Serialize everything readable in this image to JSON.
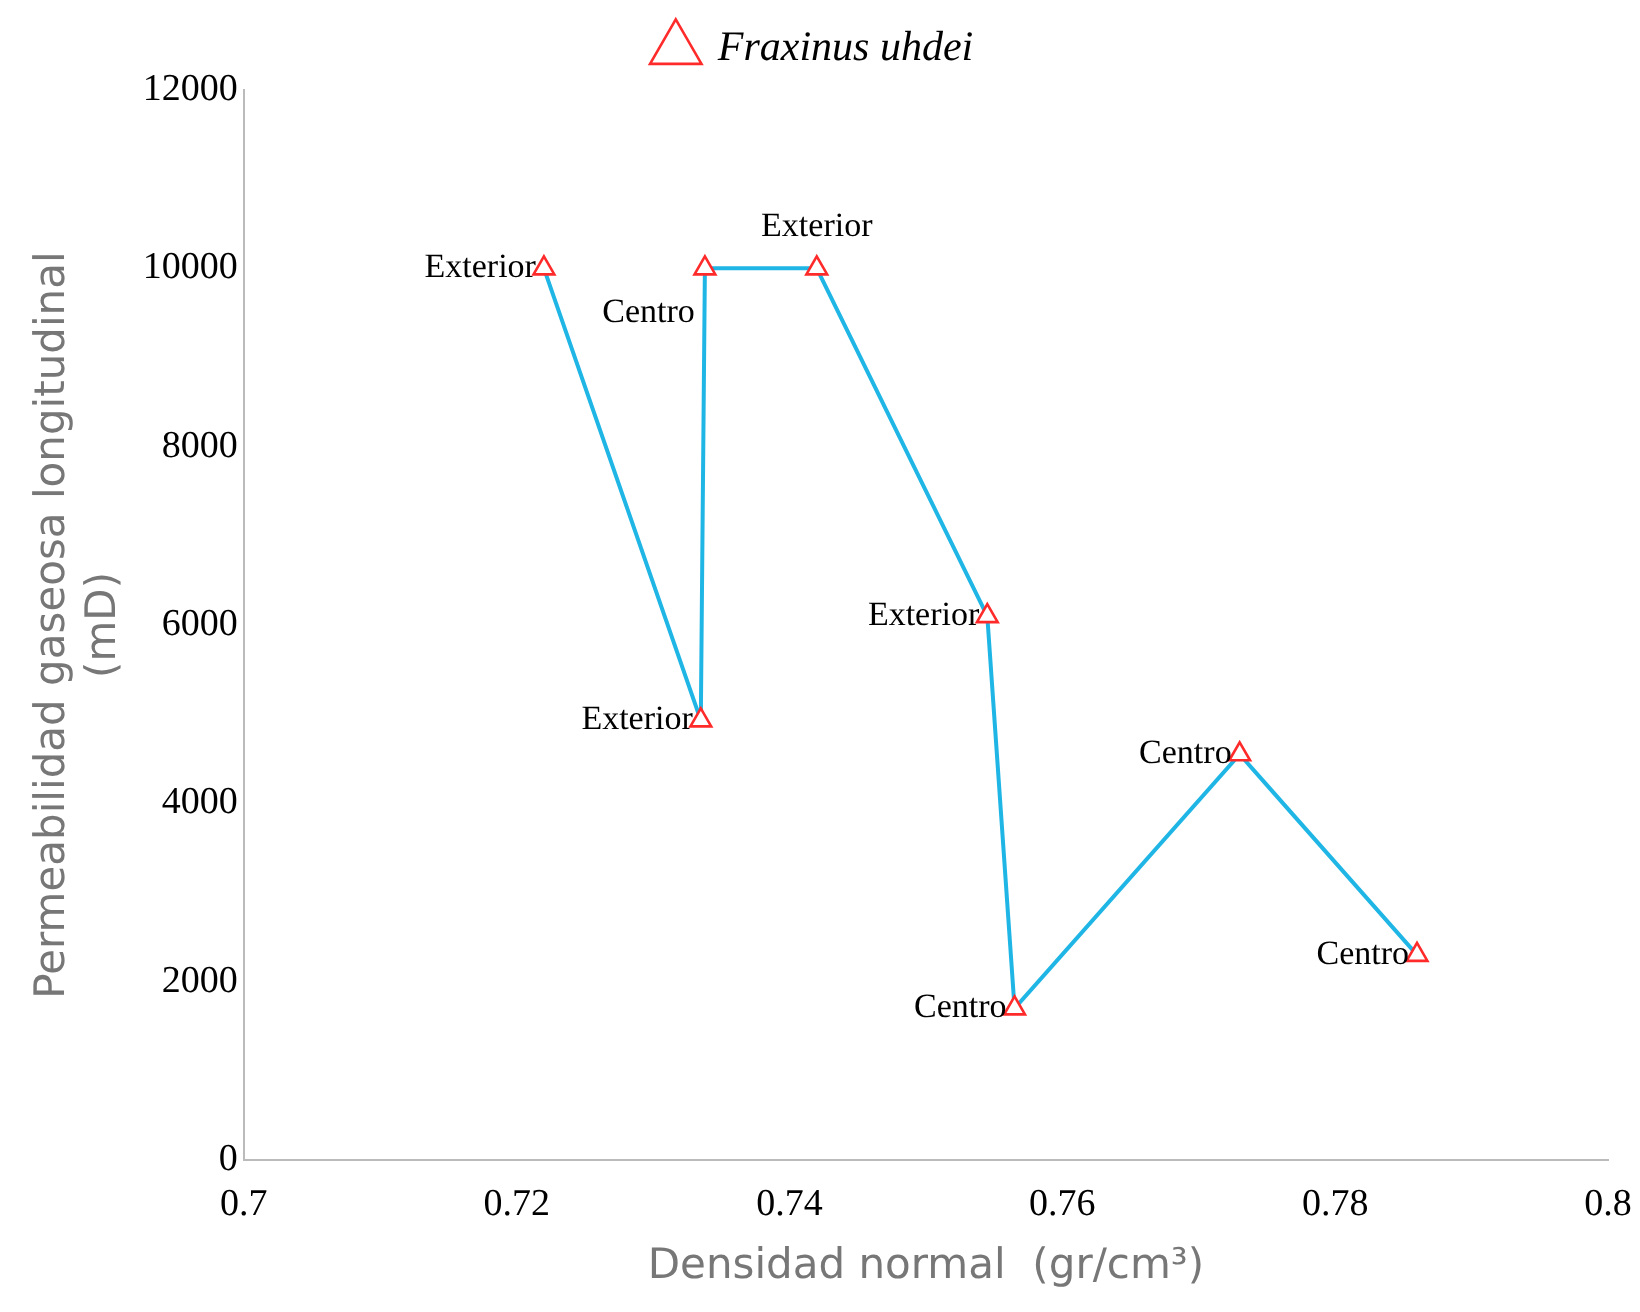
{
  "chart_data": {
    "type": "line",
    "xlabel": "Densidad normal  (gr/cm³)",
    "ylabel": "Permeabilidad gaseosa longitudinal\n(mD)",
    "xlim": [
      0.7,
      0.8
    ],
    "xticks": [
      0.7,
      0.72,
      0.74,
      0.76,
      0.78,
      0.8
    ],
    "ylim": [
      0,
      12000
    ],
    "yticks": [
      0,
      2000,
      4000,
      6000,
      8000,
      10000,
      12000
    ],
    "grid": false,
    "legend": "top",
    "marker": "triangle",
    "line_style": "solid",
    "series": [
      {
        "name": "Fraxinus uhdei",
        "color": "#1fb6e6",
        "x": [
          0.722,
          0.7335,
          0.7338,
          0.742,
          0.7545,
          0.7565,
          0.773,
          0.786
        ],
        "values": [
          10000,
          4930,
          10000,
          10000,
          6100,
          1700,
          4550,
          2300
        ]
      }
    ],
    "annotations": [
      {
        "text": "Exterior",
        "x": 0.722,
        "y": 10000
      },
      {
        "text": "Exterior",
        "x": 0.7335,
        "y": 4930
      },
      {
        "text": "Centro",
        "x": 0.7338,
        "y": 10000
      },
      {
        "text": "Exterior",
        "x": 0.742,
        "y": 10000
      },
      {
        "text": "Exterior",
        "x": 0.7545,
        "y": 6100
      },
      {
        "text": "Centro",
        "x": 0.7565,
        "y": 1700
      },
      {
        "text": "Centro",
        "x": 0.773,
        "y": 4550
      },
      {
        "text": "Centro",
        "x": 0.786,
        "y": 2300
      }
    ]
  }
}
